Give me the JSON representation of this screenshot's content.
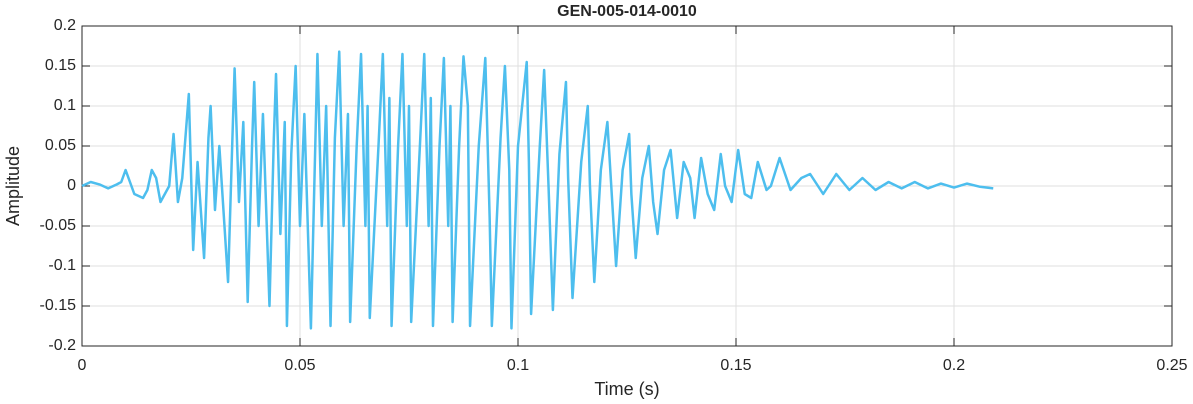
{
  "chart_data": {
    "type": "line",
    "title": "GEN-005-014-0010",
    "x_label": "Time (s)",
    "y_label": "Amplitude",
    "color": "#4DBEEE",
    "grid": true,
    "xlim": [
      0,
      0.25
    ],
    "xticks": [
      0,
      0.05,
      0.1,
      0.15,
      0.2,
      0.25
    ],
    "ylim": [
      -0.2,
      0.2
    ],
    "yticks": [
      -0.2,
      -0.15,
      -0.1,
      -0.05,
      0,
      0.05,
      0.1,
      0.15,
      0.2
    ],
    "x": [
      0,
      0.002,
      0.004,
      0.006,
      0.008,
      0.009,
      0.01,
      0.011,
      0.012,
      0.014,
      0.015,
      0.016,
      0.017,
      0.018,
      0.019,
      0.02,
      0.021,
      0.022,
      0.023,
      0.0245,
      0.0255,
      0.0265,
      0.028,
      0.029,
      0.0295,
      0.0305,
      0.0315,
      0.0335,
      0.0345,
      0.035,
      0.036,
      0.037,
      0.038,
      0.039,
      0.0395,
      0.0405,
      0.0415,
      0.043,
      0.044,
      0.0445,
      0.0455,
      0.0465,
      0.047,
      0.048,
      0.049,
      0.05,
      0.051,
      0.0525,
      0.0535,
      0.054,
      0.055,
      0.056,
      0.057,
      0.058,
      0.059,
      0.06,
      0.061,
      0.0615,
      0.063,
      0.064,
      0.065,
      0.0655,
      0.066,
      0.068,
      0.069,
      0.07,
      0.0705,
      0.071,
      0.0725,
      0.0735,
      0.0745,
      0.075,
      0.0755,
      0.0775,
      0.0785,
      0.0795,
      0.08,
      0.0805,
      0.082,
      0.083,
      0.084,
      0.0845,
      0.085,
      0.0865,
      0.0875,
      0.0885,
      0.089,
      0.091,
      0.0925,
      0.0935,
      0.094,
      0.096,
      0.097,
      0.098,
      0.0985,
      0.1,
      0.102,
      0.1025,
      0.103,
      0.105,
      0.106,
      0.107,
      0.108,
      0.1095,
      0.111,
      0.1115,
      0.1125,
      0.1145,
      0.116,
      0.1165,
      0.1175,
      0.119,
      0.1205,
      0.1215,
      0.1225,
      0.124,
      0.1255,
      0.126,
      0.127,
      0.1285,
      0.13,
      0.131,
      0.132,
      0.1335,
      0.135,
      0.1365,
      0.138,
      0.1395,
      0.1405,
      0.142,
      0.1435,
      0.145,
      0.1465,
      0.1475,
      0.149,
      0.1505,
      0.152,
      0.1535,
      0.155,
      0.157,
      0.158,
      0.16,
      0.1625,
      0.165,
      0.167,
      0.17,
      0.173,
      0.176,
      0.179,
      0.182,
      0.185,
      0.188,
      0.191,
      0.194,
      0.197,
      0.2,
      0.203,
      0.206,
      0.209
    ],
    "values": [
      0,
      0.005,
      0.002,
      -0.003,
      0.002,
      0.005,
      0.02,
      0.005,
      -0.01,
      -0.015,
      -0.005,
      0.02,
      0.01,
      -0.02,
      -0.01,
      0,
      0.065,
      -0.02,
      0.01,
      0.115,
      -0.08,
      0.03,
      -0.09,
      0.06,
      0.1,
      -0.03,
      0.05,
      -0.12,
      0.06,
      0.147,
      -0.02,
      0.08,
      -0.145,
      0.05,
      0.13,
      -0.05,
      0.09,
      -0.15,
      0.06,
      0.14,
      -0.06,
      0.08,
      -0.175,
      0.04,
      0.15,
      -0.05,
      0.09,
      -0.178,
      0.05,
      0.165,
      -0.05,
      0.1,
      -0.175,
      0.06,
      0.168,
      -0.05,
      0.09,
      -0.17,
      0.05,
      0.165,
      -0.05,
      0.1,
      -0.165,
      0.05,
      0.165,
      -0.05,
      0.11,
      -0.175,
      0.05,
      0.165,
      -0.05,
      0.1,
      -0.17,
      0.05,
      0.165,
      -0.05,
      0.11,
      -0.175,
      0.05,
      0.16,
      -0.05,
      0.1,
      -0.17,
      0.05,
      0.162,
      0.1,
      -0.175,
      0.05,
      0.16,
      -0.04,
      -0.175,
      0.06,
      0.15,
      0.02,
      -0.178,
      0.05,
      0.155,
      0.03,
      -0.16,
      0.05,
      0.145,
      0,
      -0.155,
      0.04,
      0.13,
      0.01,
      -0.14,
      0.03,
      0.1,
      0,
      -0.12,
      0.02,
      0.08,
      -0.01,
      -0.1,
      0.02,
      0.065,
      -0.01,
      -0.09,
      0.01,
      0.05,
      -0.02,
      -0.06,
      0.02,
      0.045,
      -0.04,
      0.03,
      0.01,
      -0.04,
      0.035,
      -0.01,
      -0.03,
      0.04,
      0,
      -0.02,
      0.045,
      -0.01,
      -0.015,
      0.03,
      -0.005,
      0,
      0.035,
      -0.005,
      0.01,
      0.015,
      -0.01,
      0.015,
      -0.005,
      0.01,
      -0.005,
      0.005,
      -0.003,
      0.005,
      -0.003,
      0.003,
      -0.002,
      0.003,
      -0.001,
      -0.003
    ]
  }
}
